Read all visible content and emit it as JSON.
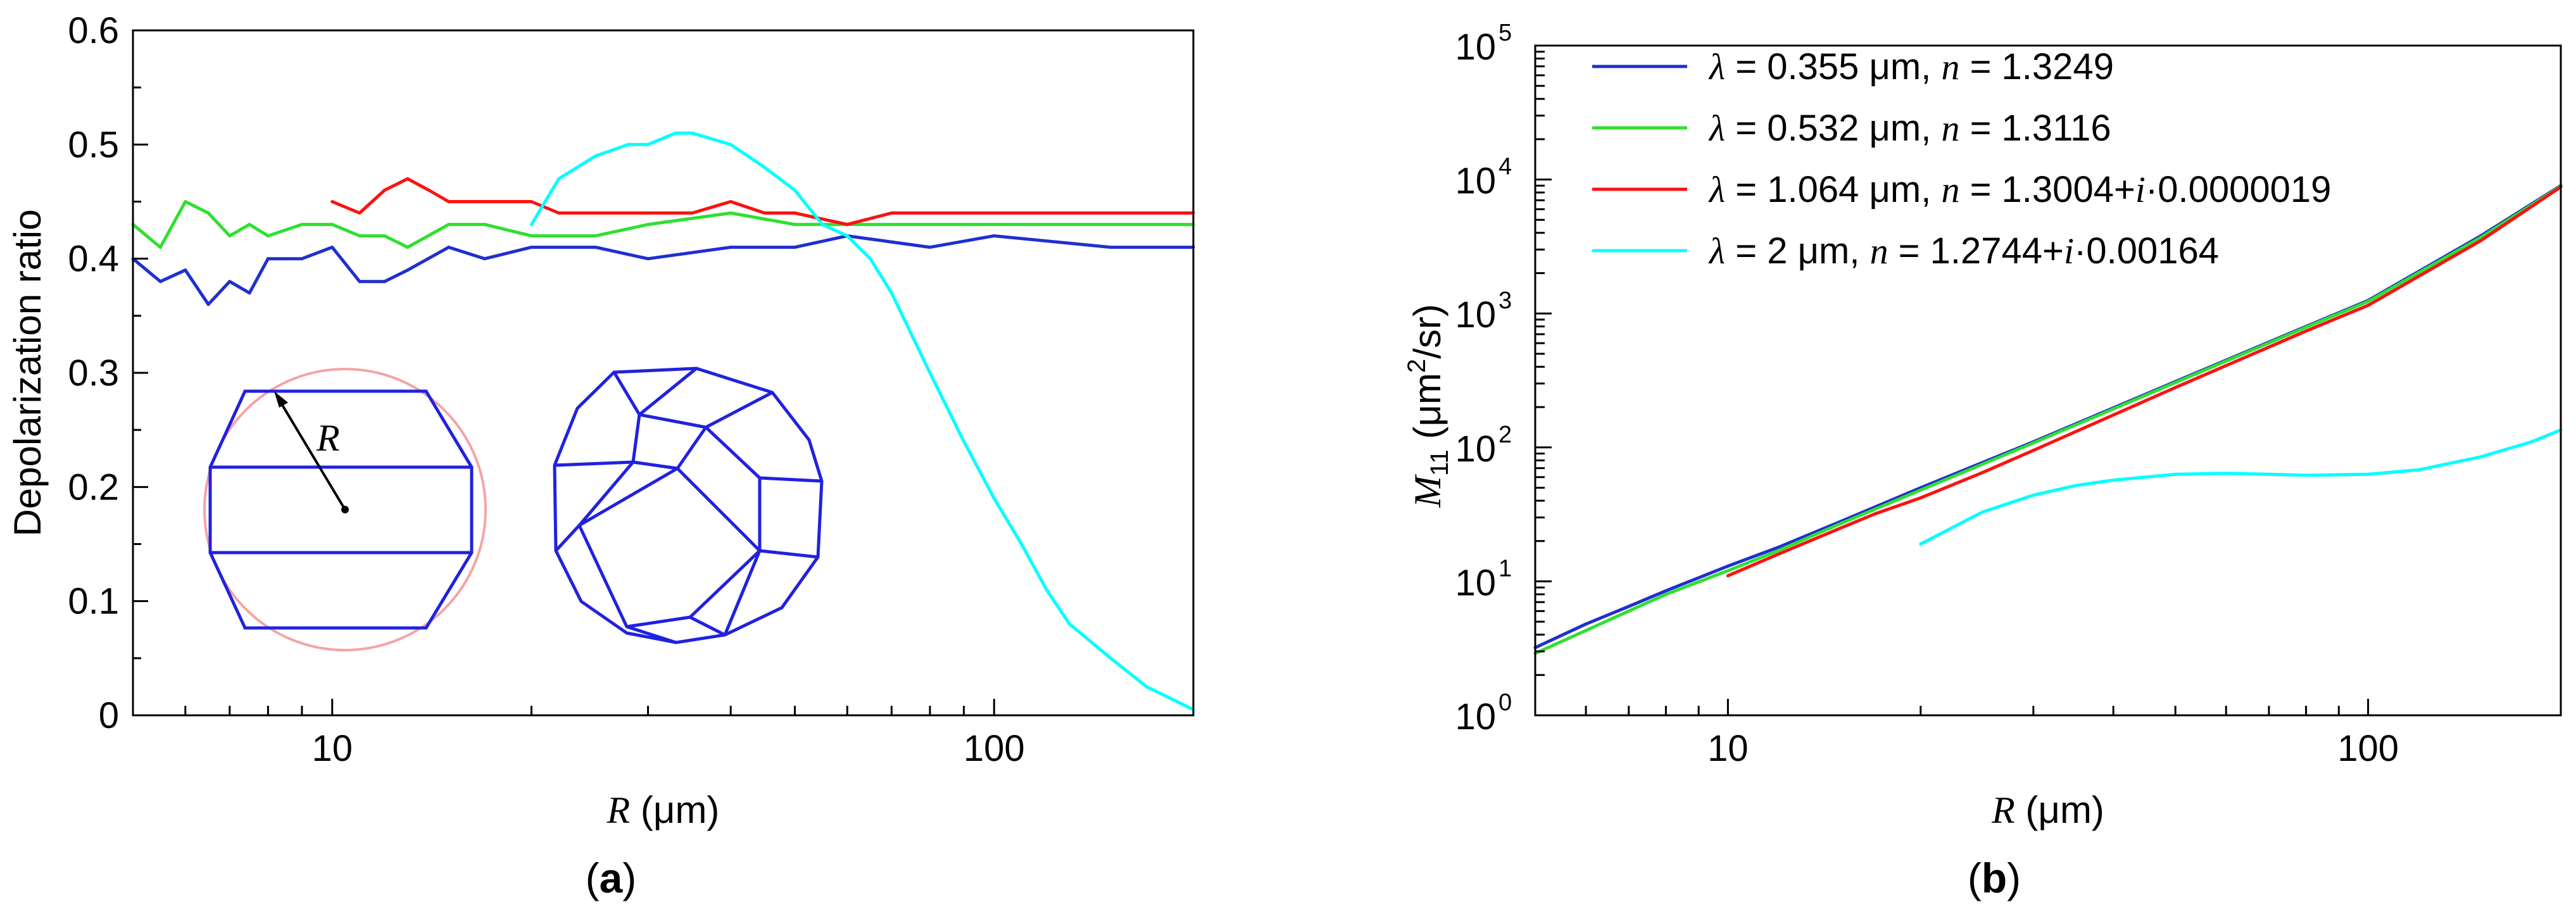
{
  "chart_data": [
    {
      "panel": "a",
      "type": "line",
      "panel_label": "a",
      "xscale": "log",
      "xlim": [
        5,
        200
      ],
      "ylim": [
        0,
        0.6
      ],
      "xlabel_var": "R",
      "xlabel_unit": " (μm)",
      "ylabel": "Depolarization ratio",
      "xticks": [
        10,
        100
      ],
      "xtick_labels": [
        "10",
        "100"
      ],
      "yticks": [
        0,
        0.1,
        0.2,
        0.3,
        0.4,
        0.5,
        0.6
      ],
      "ytick_labels": [
        "0",
        "0.1",
        "0.2",
        "0.3",
        "0.4",
        "0.5",
        "0.6"
      ],
      "inset_label": "R",
      "series": [
        {
          "name": "λ = 0.355 μm",
          "color": "#1f2fd0",
          "x": [
            5,
            5.5,
            6,
            6.5,
            7,
            7.5,
            8,
            9,
            10,
            11,
            12,
            13,
            15,
            17,
            20,
            25,
            30,
            40,
            50,
            60,
            80,
            100,
            150,
            200
          ],
          "y": [
            0.4,
            0.38,
            0.39,
            0.36,
            0.38,
            0.37,
            0.4,
            0.4,
            0.41,
            0.38,
            0.38,
            0.39,
            0.41,
            0.4,
            0.41,
            0.41,
            0.4,
            0.41,
            0.41,
            0.42,
            0.41,
            0.42,
            0.41,
            0.41
          ]
        },
        {
          "name": "λ = 0.532 μm",
          "color": "#2ee02e",
          "x": [
            5,
            5.5,
            6,
            6.5,
            7,
            7.5,
            8,
            9,
            10,
            11,
            12,
            13,
            15,
            17,
            20,
            25,
            30,
            40,
            50,
            60,
            80,
            100,
            150,
            200
          ],
          "y": [
            0.43,
            0.41,
            0.45,
            0.44,
            0.42,
            0.43,
            0.42,
            0.43,
            0.43,
            0.42,
            0.42,
            0.41,
            0.43,
            0.43,
            0.42,
            0.42,
            0.43,
            0.44,
            0.43,
            0.43,
            0.43,
            0.43,
            0.43,
            0.43
          ]
        },
        {
          "name": "λ = 1.064 μm",
          "color": "#ff1010",
          "x": [
            10,
            11,
            12,
            13,
            14,
            15,
            17,
            20,
            22,
            25,
            30,
            35,
            40,
            45,
            50,
            60,
            70,
            80,
            100,
            120,
            150,
            200
          ],
          "y": [
            0.45,
            0.44,
            0.46,
            0.47,
            0.46,
            0.45,
            0.45,
            0.45,
            0.44,
            0.44,
            0.44,
            0.44,
            0.45,
            0.44,
            0.44,
            0.43,
            0.44,
            0.44,
            0.44,
            0.44,
            0.44,
            0.44
          ]
        },
        {
          "name": "λ = 2 μm",
          "color": "#00ffff",
          "x": [
            20,
            22,
            25,
            28,
            30,
            33,
            35,
            40,
            45,
            50,
            55,
            60,
            65,
            70,
            80,
            90,
            100,
            110,
            120,
            130,
            150,
            170,
            200
          ],
          "y": [
            0.43,
            0.47,
            0.49,
            0.5,
            0.5,
            0.51,
            0.51,
            0.5,
            0.48,
            0.46,
            0.43,
            0.42,
            0.4,
            0.37,
            0.3,
            0.24,
            0.19,
            0.15,
            0.11,
            0.08,
            0.05,
            0.025,
            0.005
          ]
        }
      ]
    },
    {
      "panel": "b",
      "type": "line",
      "panel_label": "b",
      "xscale": "log",
      "yscale": "log",
      "xlim": [
        5,
        200
      ],
      "ylim": [
        1,
        100000
      ],
      "xlabel_var": "R",
      "xlabel_unit": " (μm)",
      "ylabel_var": "M",
      "ylabel_sub": "11",
      "ylabel_unit_pre": " (μm",
      "ylabel_unit_sup": "2",
      "ylabel_unit_post": "/sr)",
      "xticks": [
        10,
        100
      ],
      "xtick_labels": [
        "10",
        "100"
      ],
      "ytick_base": "10",
      "ytick_exponents": [
        "0",
        "1",
        "2",
        "3",
        "4",
        "5"
      ],
      "series": [
        {
          "name": "λ = 0.355 μm,  n = 1.3249",
          "color": "#1f2fd0",
          "legend_lambda": "λ",
          "legend_lambda_val": " = 0.355 μm,  ",
          "legend_n": "n",
          "legend_n_val": " = 1.3249",
          "x": [
            5,
            6,
            7,
            8,
            10,
            12,
            15,
            20,
            30,
            50,
            80,
            100,
            150,
            200
          ],
          "y": [
            3.2,
            4.8,
            6.5,
            8.5,
            13,
            18,
            28,
            50,
            110,
            310,
            800,
            1250,
            3800,
            9000
          ]
        },
        {
          "name": "λ = 0.532 μm,  n = 1.3116",
          "color": "#2ee02e",
          "legend_lambda": "λ",
          "legend_lambda_val": " = 0.532 μm,  ",
          "legend_n": "n",
          "legend_n_val": " = 1.3116",
          "x": [
            5,
            6,
            7,
            8,
            10,
            12,
            15,
            20,
            30,
            50,
            80,
            100,
            150,
            200
          ],
          "y": [
            2.9,
            4.3,
            6,
            8,
            12,
            17,
            27,
            48,
            108,
            305,
            790,
            1230,
            3700,
            8900
          ]
        },
        {
          "name": "λ = 1.064 μm,  n = 1.3004+i·0.0000019",
          "color": "#ff1010",
          "legend_lambda": "λ",
          "legend_lambda_val": " = 1.064 μm,  ",
          "legend_n": "n",
          "legend_n_val": " = 1.3004+",
          "legend_i": "i",
          "legend_i_val": "·0.0000019",
          "x": [
            10,
            12,
            15,
            17,
            20,
            25,
            30,
            50,
            80,
            100,
            150,
            200
          ],
          "y": [
            11,
            16,
            25,
            32,
            42,
            65,
            95,
            280,
            740,
            1150,
            3500,
            8800
          ]
        },
        {
          "name": "λ = 2 μm,  n = 1.2744+i·0.00164",
          "color": "#00ffff",
          "legend_lambda": "λ",
          "legend_lambda_val": " = 2 μm,  ",
          "legend_n": "n",
          "legend_n_val": " = 1.2744+",
          "legend_i": "i",
          "legend_i_val": "·0.00164",
          "x": [
            20,
            25,
            30,
            35,
            40,
            50,
            60,
            70,
            80,
            100,
            120,
            150,
            180,
            200
          ],
          "y": [
            19,
            33,
            44,
            52,
            57,
            63,
            64,
            63,
            62,
            63,
            68,
            85,
            110,
            135
          ]
        }
      ]
    }
  ]
}
